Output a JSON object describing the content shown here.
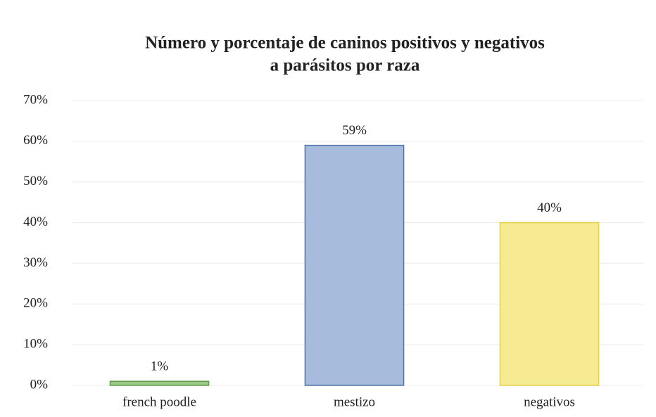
{
  "chart_data": {
    "type": "bar",
    "title": [
      "Número y porcentaje de caninos positivos y negativos",
      "a parásitos por raza"
    ],
    "categories": [
      "french poodle",
      "mestizo",
      "negativos"
    ],
    "values": [
      1,
      59,
      40
    ],
    "value_labels": [
      "1%",
      "59%",
      "40%"
    ],
    "colors": [
      "#9cc98a",
      "#a7bcdc",
      "#f6eb93"
    ],
    "edge_colors": [
      "#5f9e4c",
      "#4e74ab",
      "#e3cf4a"
    ],
    "ylim": [
      0,
      70
    ],
    "yticks": [
      {
        "value": 0,
        "label": "0%"
      },
      {
        "value": 10,
        "label": "10%"
      },
      {
        "value": 20,
        "label": "20%"
      },
      {
        "value": 30,
        "label": "30%"
      },
      {
        "value": 40,
        "label": "40%"
      },
      {
        "value": 50,
        "label": "50%"
      },
      {
        "value": 60,
        "label": "60%"
      },
      {
        "value": 70,
        "label": "70%"
      }
    ],
    "grid": true
  }
}
